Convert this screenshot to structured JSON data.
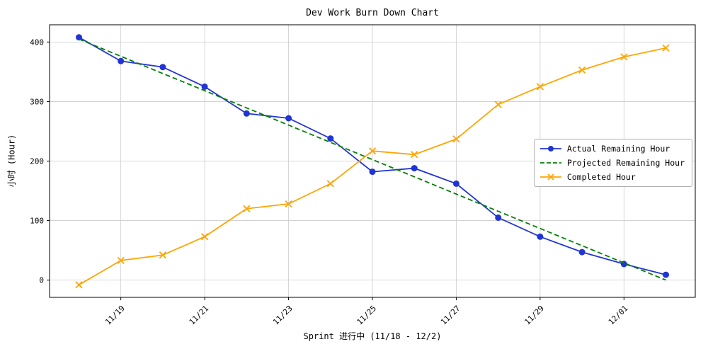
{
  "chart_data": {
    "type": "line",
    "title": "Dev Work Burn Down Chart",
    "xlabel": "Sprint 进行中 (11/18 - 12/2)",
    "ylabel": "小时 (Hour)",
    "x_ticks": [
      "11/19",
      "11/21",
      "11/23",
      "11/25",
      "11/27",
      "11/29",
      "12/01"
    ],
    "x_tick_indices": [
      1,
      3,
      5,
      7,
      9,
      11,
      13
    ],
    "y_ticks": [
      0,
      100,
      200,
      300,
      400
    ],
    "ylim": [
      -29,
      429
    ],
    "n_points": 15,
    "grid": true,
    "legend_position": "center right",
    "series": [
      {
        "name": "Actual Remaining Hour",
        "color": "#2134d4",
        "style": "solid",
        "marker": "circle",
        "values": [
          408,
          368,
          358,
          325,
          280,
          272,
          238,
          182,
          188,
          162,
          105,
          73,
          47,
          27,
          9
        ]
      },
      {
        "name": "Projected Remaining Hour",
        "color": "#008000",
        "style": "dashed",
        "marker": "none",
        "values": [
          405,
          376.1,
          347.1,
          318.2,
          289.3,
          260.4,
          231.4,
          202.5,
          173.6,
          144.6,
          115.7,
          86.8,
          57.9,
          28.9,
          0
        ]
      },
      {
        "name": "Completed Hour",
        "color": "#ffa500",
        "style": "solid",
        "marker": "x",
        "values": [
          -8,
          33,
          42,
          73,
          120,
          128,
          162,
          217,
          211,
          237,
          295,
          325,
          353,
          375,
          390
        ]
      }
    ]
  }
}
